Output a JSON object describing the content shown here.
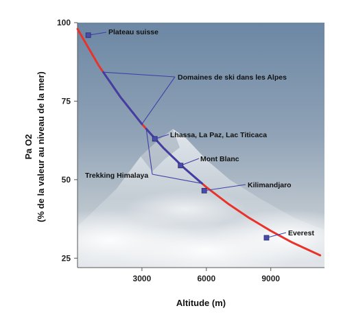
{
  "chart_data": {
    "type": "line",
    "xlabel": "Altitude (m)",
    "ylabel": "Pa O2",
    "ylabel_sub": "(% de la valeur au niveau de la mer)",
    "xlim": [
      0,
      11500
    ],
    "ylim": [
      22,
      100
    ],
    "x_ticks": [
      3000,
      6000,
      9000
    ],
    "y_ticks": [
      25,
      50,
      75,
      100
    ],
    "grid": false,
    "series": [
      {
        "color": "#e8322a",
        "x": [
          0,
          1000,
          2000,
          3000,
          4000,
          5000,
          6000,
          7000,
          8000,
          9000,
          10000,
          11300
        ],
        "y": [
          98.0,
          86.2,
          76.3,
          67.7,
          60.1,
          53.5,
          47.6,
          42.4,
          37.8,
          33.7,
          30.0,
          25.9
        ]
      }
    ],
    "highlight_ranges": [
      {
        "color": "#3f3fa6",
        "x_start": 1200,
        "x_end": 3000
      },
      {
        "color": "#3f3fa6",
        "x_start": 3200,
        "x_end": 5800
      }
    ],
    "points": [
      {
        "label": "Plateau suisse",
        "x": 500,
        "y": 96
      },
      {
        "label": "Lhassa, La Paz, Lac Titicaca",
        "x": 3600,
        "y": 63
      },
      {
        "label": "Mont Blanc",
        "x": 4800,
        "y": 54.5
      },
      {
        "label": "Kilimandjaro",
        "x": 5900,
        "y": 46.5
      },
      {
        "label": "Everest",
        "x": 8800,
        "y": 31.5
      }
    ],
    "annotations": [
      {
        "label": "Domaines de ski dans les Alpes"
      },
      {
        "label": "Trekking Himalaya"
      }
    ],
    "colors": {
      "line": "#e8322a",
      "highlight": "#3f3fa6",
      "marker": "#4a4aa8"
    }
  }
}
